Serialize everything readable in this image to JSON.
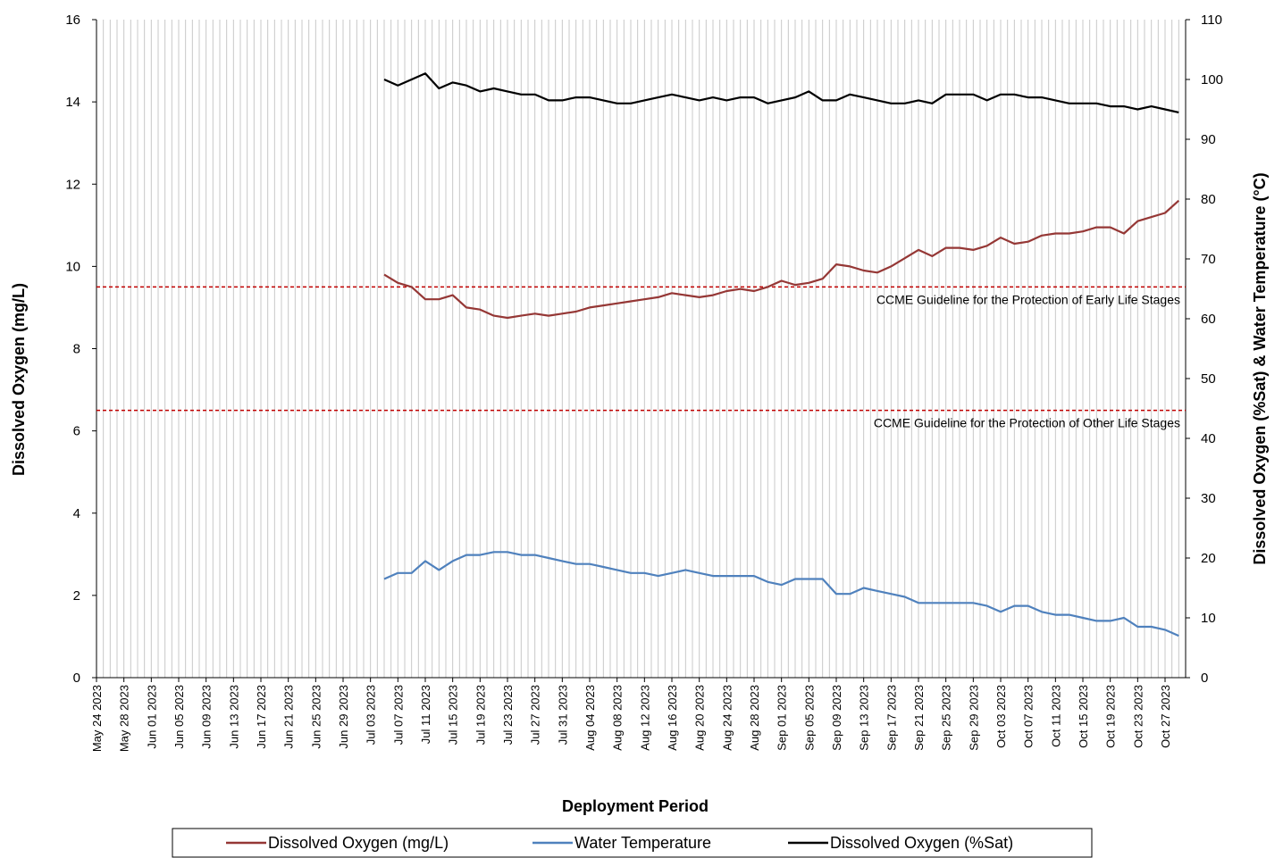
{
  "chart_data": {
    "type": "line",
    "x_label": "Deployment Period",
    "y_label": "Dissolved  Oxygen (mg/L)",
    "y2_label": "Dissolved  Oxygen (%Sat) & Water Temperature (°C)",
    "xlim": [
      "2023-05-24",
      "2023-10-30"
    ],
    "xticks": [
      {
        "value": "2023-05-24",
        "label": "May 24 2023"
      },
      {
        "value": "2023-05-28",
        "label": "May 28 2023"
      },
      {
        "value": "2023-06-01",
        "label": "Jun 01 2023"
      },
      {
        "value": "2023-06-05",
        "label": "Jun 05 2023"
      },
      {
        "value": "2023-06-09",
        "label": "Jun 09 2023"
      },
      {
        "value": "2023-06-13",
        "label": "Jun 13 2023"
      },
      {
        "value": "2023-06-17",
        "label": "Jun 17 2023"
      },
      {
        "value": "2023-06-21",
        "label": "Jun 21 2023"
      },
      {
        "value": "2023-06-25",
        "label": "Jun 25 2023"
      },
      {
        "value": "2023-06-29",
        "label": "Jun 29 2023"
      },
      {
        "value": "2023-07-03",
        "label": "Jul 03 2023"
      },
      {
        "value": "2023-07-07",
        "label": "Jul 07 2023"
      },
      {
        "value": "2023-07-11",
        "label": "Jul 11 2023"
      },
      {
        "value": "2023-07-15",
        "label": "Jul 15 2023"
      },
      {
        "value": "2023-07-19",
        "label": "Jul 19 2023"
      },
      {
        "value": "2023-07-23",
        "label": "Jul 23 2023"
      },
      {
        "value": "2023-07-27",
        "label": "Jul 27 2023"
      },
      {
        "value": "2023-07-31",
        "label": "Jul 31 2023"
      },
      {
        "value": "2023-08-04",
        "label": "Aug 04 2023"
      },
      {
        "value": "2023-08-08",
        "label": "Aug 08 2023"
      },
      {
        "value": "2023-08-12",
        "label": "Aug 12 2023"
      },
      {
        "value": "2023-08-16",
        "label": "Aug 16 2023"
      },
      {
        "value": "2023-08-20",
        "label": "Aug 20 2023"
      },
      {
        "value": "2023-08-24",
        "label": "Aug 24 2023"
      },
      {
        "value": "2023-08-28",
        "label": "Aug 28 2023"
      },
      {
        "value": "2023-09-01",
        "label": "Sep 01 2023"
      },
      {
        "value": "2023-09-05",
        "label": "Sep 05 2023"
      },
      {
        "value": "2023-09-09",
        "label": "Sep 09 2023"
      },
      {
        "value": "2023-09-13",
        "label": "Sep 13 2023"
      },
      {
        "value": "2023-09-17",
        "label": "Sep 17 2023"
      },
      {
        "value": "2023-09-21",
        "label": "Sep 21 2023"
      },
      {
        "value": "2023-09-25",
        "label": "Sep 25 2023"
      },
      {
        "value": "2023-09-29",
        "label": "Sep 29 2023"
      },
      {
        "value": "2023-10-03",
        "label": "Oct 03 2023"
      },
      {
        "value": "2023-10-07",
        "label": "Oct 07 2023"
      },
      {
        "value": "2023-10-11",
        "label": "Oct 11 2023"
      },
      {
        "value": "2023-10-15",
        "label": "Oct 15 2023"
      },
      {
        "value": "2023-10-19",
        "label": "Oct 19 2023"
      },
      {
        "value": "2023-10-23",
        "label": "Oct 23 2023"
      },
      {
        "value": "2023-10-27",
        "label": "Oct 27 2023"
      }
    ],
    "ylim": [
      0,
      16
    ],
    "yticks": [
      0,
      2,
      4,
      6,
      8,
      10,
      12,
      14,
      16
    ],
    "y2lim": [
      0,
      110
    ],
    "y2ticks": [
      0,
      10,
      20,
      30,
      40,
      50,
      60,
      70,
      80,
      90,
      100,
      110
    ],
    "grid": true,
    "reference_lines": [
      {
        "value": 9.5,
        "label": "CCME  Guideline  for the Protection of Early Life Stages",
        "color": "#c00000"
      },
      {
        "value": 6.5,
        "label": "CCME  Guideline  for the Protection of Other Life Stages",
        "color": "#c00000"
      }
    ],
    "x": [
      "2023-07-05",
      "2023-07-07",
      "2023-07-09",
      "2023-07-11",
      "2023-07-13",
      "2023-07-15",
      "2023-07-17",
      "2023-07-19",
      "2023-07-21",
      "2023-07-23",
      "2023-07-25",
      "2023-07-27",
      "2023-07-29",
      "2023-07-31",
      "2023-08-02",
      "2023-08-04",
      "2023-08-06",
      "2023-08-08",
      "2023-08-10",
      "2023-08-12",
      "2023-08-14",
      "2023-08-16",
      "2023-08-18",
      "2023-08-20",
      "2023-08-22",
      "2023-08-24",
      "2023-08-26",
      "2023-08-28",
      "2023-08-30",
      "2023-09-01",
      "2023-09-03",
      "2023-09-05",
      "2023-09-07",
      "2023-09-09",
      "2023-09-11",
      "2023-09-13",
      "2023-09-15",
      "2023-09-17",
      "2023-09-19",
      "2023-09-21",
      "2023-09-23",
      "2023-09-25",
      "2023-09-27",
      "2023-09-29",
      "2023-10-01",
      "2023-10-03",
      "2023-10-05",
      "2023-10-07",
      "2023-10-09",
      "2023-10-11",
      "2023-10-13",
      "2023-10-15",
      "2023-10-17",
      "2023-10-19",
      "2023-10-21",
      "2023-10-23",
      "2023-10-25",
      "2023-10-27",
      "2023-10-29"
    ],
    "series": [
      {
        "name": "Dissolved Oxygen (mg/L)",
        "color": "#953735",
        "axis": "y",
        "values": [
          9.8,
          9.6,
          9.5,
          9.2,
          9.2,
          9.3,
          9.0,
          8.95,
          8.8,
          8.75,
          8.8,
          8.85,
          8.8,
          8.85,
          8.9,
          9.0,
          9.05,
          9.1,
          9.15,
          9.2,
          9.25,
          9.35,
          9.3,
          9.25,
          9.3,
          9.4,
          9.45,
          9.4,
          9.5,
          9.65,
          9.55,
          9.6,
          9.7,
          10.05,
          10.0,
          9.9,
          9.85,
          10.0,
          10.2,
          10.4,
          10.25,
          10.45,
          10.45,
          10.4,
          10.5,
          10.7,
          10.55,
          10.6,
          10.75,
          10.8,
          10.8,
          10.85,
          10.95,
          10.95,
          10.8,
          11.1,
          11.2,
          11.3,
          11.6
        ]
      },
      {
        "name": "Water Temperature",
        "color": "#4f81bd",
        "axis": "y2",
        "values": [
          16.5,
          17.5,
          17.5,
          19.5,
          18,
          19.5,
          20.5,
          20.5,
          21,
          21,
          20.5,
          20.5,
          20,
          19.5,
          19,
          19,
          18.5,
          18,
          17.5,
          17.5,
          17,
          17.5,
          18,
          17.5,
          17,
          17,
          17,
          17,
          16,
          15.5,
          16.5,
          16.5,
          16.5,
          14,
          14,
          15,
          14.5,
          14,
          13.5,
          12.5,
          12.5,
          12.5,
          12.5,
          12.5,
          12,
          11,
          12,
          12,
          11,
          10.5,
          10.5,
          10,
          9.5,
          9.5,
          10,
          8.5,
          8.5,
          8,
          7
        ]
      },
      {
        "name": "Dissolved Oxygen (%Sat)",
        "color": "#000000",
        "axis": "y2",
        "values": [
          100,
          99,
          100,
          101,
          98.5,
          99.5,
          99,
          98,
          98.5,
          98,
          97.5,
          97.5,
          96.5,
          96.5,
          97,
          97,
          96.5,
          96,
          96,
          96.5,
          97,
          97.5,
          97,
          96.5,
          97,
          96.5,
          97,
          97,
          96,
          96.5,
          97,
          98,
          96.5,
          96.5,
          97.5,
          97,
          96.5,
          96,
          96,
          96.5,
          96,
          97.5,
          97.5,
          97.5,
          96.5,
          97.5,
          97.5,
          97,
          97,
          96.5,
          96,
          96,
          96,
          95.5,
          95.5,
          95,
          95.5,
          95,
          94.5
        ]
      }
    ]
  }
}
